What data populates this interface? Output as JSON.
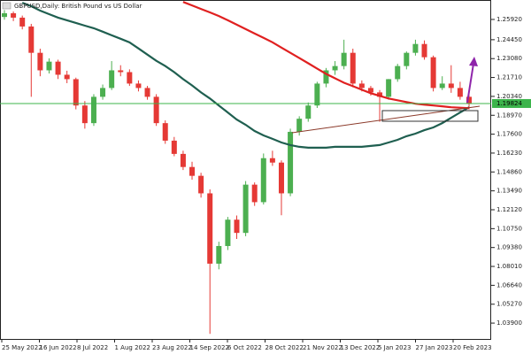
{
  "chart_data": {
    "type": "candlestick",
    "title": "GBPUSD,Daily: British Pound vs US Dollar",
    "up_color": "#4caf50",
    "down_color": "#e53935",
    "candles": [
      [
        1.261,
        1.266,
        1.259,
        1.2637
      ],
      [
        1.2637,
        1.265,
        1.258,
        1.2605
      ],
      [
        1.2605,
        1.262,
        1.252,
        1.2541
      ],
      [
        1.2541,
        1.256,
        1.2031,
        1.235
      ],
      [
        1.235,
        1.238,
        1.218,
        1.2223
      ],
      [
        1.2223,
        1.231,
        1.22,
        1.2286
      ],
      [
        1.2286,
        1.23,
        1.216,
        1.2191
      ],
      [
        1.2191,
        1.222,
        1.213,
        1.2159
      ],
      [
        1.2159,
        1.217,
        1.194,
        1.1968
      ],
      [
        1.1968,
        1.2,
        1.18,
        1.184
      ],
      [
        1.184,
        1.205,
        1.182,
        1.2031
      ],
      [
        1.2031,
        1.212,
        1.201,
        1.2095
      ],
      [
        1.2095,
        1.229,
        1.208,
        1.2223
      ],
      [
        1.2223,
        1.226,
        1.218,
        1.221
      ],
      [
        1.221,
        1.223,
        1.211,
        1.2127
      ],
      [
        1.2127,
        1.215,
        1.207,
        1.2095
      ],
      [
        1.2095,
        1.211,
        1.201,
        1.2031
      ],
      [
        1.2031,
        1.205,
        1.182,
        1.184
      ],
      [
        1.184,
        1.186,
        1.169,
        1.1713
      ],
      [
        1.1713,
        1.174,
        1.16,
        1.1617
      ],
      [
        1.1617,
        1.164,
        1.15,
        1.1522
      ],
      [
        1.1522,
        1.156,
        1.143,
        1.1458
      ],
      [
        1.1458,
        1.148,
        1.13,
        1.1331
      ],
      [
        1.1331,
        1.136,
        1.0312,
        1.0821
      ],
      [
        1.0821,
        1.098,
        1.078,
        1.0949
      ],
      [
        1.0949,
        1.116,
        1.092,
        1.114
      ],
      [
        1.114,
        1.117,
        1.1,
        1.1044
      ],
      [
        1.1044,
        1.142,
        1.102,
        1.1394
      ],
      [
        1.1394,
        1.141,
        1.124,
        1.1267
      ],
      [
        1.1267,
        1.162,
        1.125,
        1.1586
      ],
      [
        1.1586,
        1.164,
        1.153,
        1.1554
      ],
      [
        1.1554,
        1.157,
        1.1172,
        1.1331
      ],
      [
        1.1331,
        1.18,
        1.131,
        1.1777
      ],
      [
        1.1777,
        1.189,
        1.175,
        1.1872
      ],
      [
        1.1872,
        1.199,
        1.185,
        1.1968
      ],
      [
        1.1968,
        1.214,
        1.195,
        1.2127
      ],
      [
        1.2127,
        1.224,
        1.21,
        1.2223
      ],
      [
        1.2223,
        1.229,
        1.219,
        1.2254
      ],
      [
        1.2254,
        1.2445,
        1.223,
        1.235
      ],
      [
        1.235,
        1.238,
        1.21,
        1.2127
      ],
      [
        1.2127,
        1.215,
        1.207,
        1.2095
      ],
      [
        1.2095,
        1.211,
        1.204,
        1.2063
      ],
      [
        1.2063,
        1.208,
        1.185,
        1.2031
      ],
      [
        1.2031,
        1.216,
        1.201,
        1.2159
      ],
      [
        1.2159,
        1.227,
        1.214,
        1.2254
      ],
      [
        1.2254,
        1.236,
        1.223,
        1.235
      ],
      [
        1.235,
        1.2445,
        1.233,
        1.2414
      ],
      [
        1.2414,
        1.244,
        1.23,
        1.2318
      ],
      [
        1.2318,
        1.233,
        1.207,
        1.2095
      ],
      [
        1.2095,
        1.218,
        1.208,
        1.2127
      ],
      [
        1.2127,
        1.226,
        1.206,
        1.2095
      ],
      [
        1.2095,
        1.214,
        1.201,
        1.2031
      ],
      [
        1.2031,
        1.206,
        1.194,
        1.1982
      ]
    ],
    "series": [
      {
        "color": "#1f5f50",
        "values": [
          null,
          null,
          1.2713,
          1.2688,
          1.2656,
          1.263,
          1.2605,
          1.2586,
          1.2567,
          1.2547,
          1.2528,
          1.2503,
          1.2477,
          1.2452,
          1.2426,
          1.2382,
          1.2337,
          1.2292,
          1.2254,
          1.221,
          1.2159,
          1.2114,
          1.2063,
          1.2019,
          1.1968,
          1.1917,
          1.1866,
          1.1828,
          1.1783,
          1.1751,
          1.1726,
          1.17,
          1.1681,
          1.1668,
          1.1662,
          1.1662,
          1.1662,
          1.1668,
          1.1668,
          1.1668,
          1.1668,
          1.1675,
          1.1681,
          1.17,
          1.1719,
          1.1745,
          1.1764,
          1.1789,
          1.1809,
          1.184,
          1.1879,
          1.1917,
          1.1955
        ]
      },
      {
        "color": "#e02020",
        "values": [
          null,
          null,
          null,
          null,
          null,
          null,
          null,
          null,
          null,
          null,
          null,
          null,
          null,
          null,
          null,
          null,
          null,
          null,
          null,
          null,
          1.2719,
          1.2694,
          1.2668,
          1.2643,
          1.2617,
          1.2586,
          1.2554,
          1.2522,
          1.249,
          1.2458,
          1.2426,
          1.2388,
          1.235,
          1.2312,
          1.2274,
          1.2235,
          1.2197,
          1.2165,
          1.2133,
          1.2108,
          1.2082,
          1.2057,
          1.2038,
          1.2019,
          1.2006,
          1.1993,
          1.1981,
          1.1974,
          1.1968,
          1.1962,
          1.1955,
          1.1952,
          1.1949
        ]
      }
    ],
    "current_price": 1.19824,
    "current_price_color": "#3cb44b",
    "x_labels": [
      "25 May 2022",
      "16 Jun 2022",
      "8 Jul 2022",
      "1 Aug 2022",
      "23 Aug 2022",
      "14 Sep 2022",
      "6 Oct 2022",
      "28 Oct 2022",
      "21 Nov 2022",
      "13 Dec 2022",
      "5 Jan 2023",
      "27 Jan 2023",
      "20 Feb 2023"
    ],
    "ylim": [
      1.0275,
      1.2733
    ],
    "yticks": [
      {
        "value": 1.2592,
        "label": "1.25920"
      },
      {
        "value": 1.2445,
        "label": "1.24450"
      },
      {
        "value": 1.2308,
        "label": "1.23080"
      },
      {
        "value": 1.2171,
        "label": "1.21710"
      },
      {
        "value": 1.2034,
        "label": "1.20340"
      },
      {
        "value": 1.1897,
        "label": "1.18970"
      },
      {
        "value": 1.176,
        "label": "1.17600"
      },
      {
        "value": 1.1623,
        "label": "1.16230"
      },
      {
        "value": 1.1486,
        "label": "1.14860"
      },
      {
        "value": 1.1349,
        "label": "1.13490"
      },
      {
        "value": 1.1212,
        "label": "1.12120"
      },
      {
        "value": 1.1075,
        "label": "1.10750"
      },
      {
        "value": 1.0938,
        "label": "1.09380"
      },
      {
        "value": 1.0801,
        "label": "1.08010"
      },
      {
        "value": 1.0664,
        "label": "1.06640"
      },
      {
        "value": 1.0527,
        "label": "1.05270"
      },
      {
        "value": 1.039,
        "label": "1.03900"
      }
    ]
  }
}
